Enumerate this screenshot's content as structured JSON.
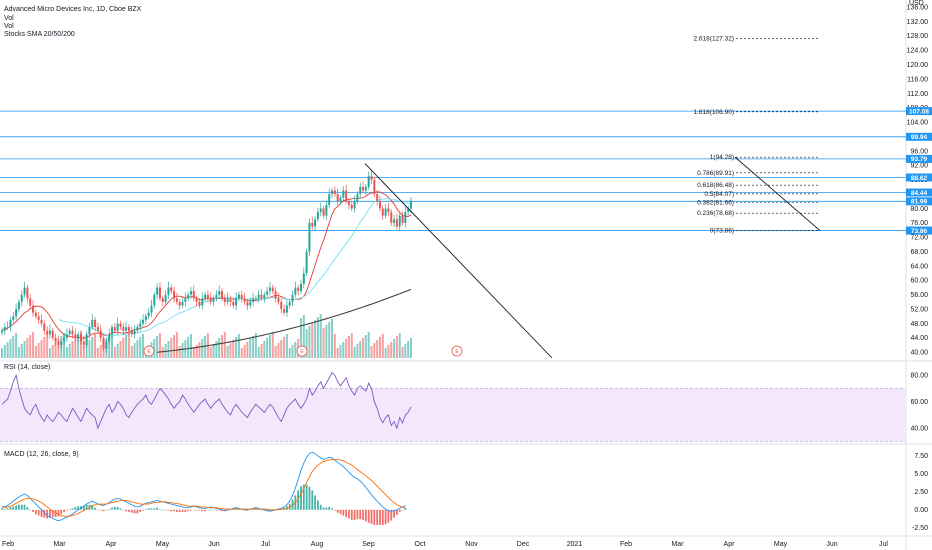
{
  "legend": {
    "symbol": "Advanced Micro Devices Inc, 1D, Cboe BZX",
    "vol1": "Vol",
    "vol2": "Vol",
    "sma": "Stocks SMA 20/50/200",
    "rsi": "RSI (14, close)",
    "macd": "MACD (12, 26, close, 9)"
  },
  "colors": {
    "up": "#26a69a",
    "down": "#ef5350",
    "sma20": "#e53935",
    "sma50": "#7fe3f1",
    "sma200": "#424242",
    "hline": "#2196f3",
    "rsi": "#7e57c2",
    "rsiband": "#f3e8fb",
    "macd": "#2196f3",
    "signal": "#ff6d00",
    "earnings": "#ef5350"
  },
  "chart_data": [
    {
      "name": "price",
      "type": "candlestick",
      "currency_label": "USD",
      "y_ticks": [
        "40.00",
        "44.00",
        "48.00",
        "52.00",
        "56.00",
        "60.00",
        "64.00",
        "68.00",
        "72.00",
        "76.00",
        "80.00",
        "84.00",
        "88.00",
        "92.00",
        "96.00",
        "100.00",
        "104.00",
        "108.00",
        "112.00",
        "116.00",
        "120.00",
        "124.00",
        "128.00",
        "132.00",
        "136.00"
      ],
      "x_ticks": [
        "Feb",
        "Mar",
        "Apr",
        "May",
        "Jun",
        "Jul",
        "Aug",
        "Sep",
        "Oct",
        "Nov",
        "Dec",
        "2021",
        "Feb",
        "Mar",
        "Apr",
        "May",
        "Jun",
        "Jul"
      ],
      "ylim": [
        38.4,
        138
      ],
      "series_closes_approx": [
        46,
        47,
        47,
        49,
        50,
        52,
        54,
        56,
        58,
        55,
        53,
        51,
        50,
        49,
        48,
        46,
        45,
        46,
        44,
        43,
        42,
        43,
        44,
        45,
        46,
        45,
        44,
        45,
        43,
        42,
        45,
        47,
        49,
        47,
        46,
        44,
        41,
        43,
        45,
        47,
        46,
        48,
        47,
        46,
        47,
        46,
        45,
        46,
        47,
        48,
        49,
        50,
        51,
        53,
        56,
        58,
        55,
        54,
        56,
        58,
        57,
        55,
        54,
        53,
        54,
        55,
        56,
        57,
        55,
        54,
        53,
        55,
        56,
        55,
        54,
        55,
        56,
        57,
        55,
        54,
        55,
        54,
        53,
        55,
        56,
        55,
        54,
        53,
        54,
        55,
        55,
        56,
        55,
        56,
        57,
        58,
        57,
        55,
        54,
        52,
        51,
        53,
        54,
        56,
        58,
        57,
        59,
        62,
        68,
        76,
        75,
        77,
        79,
        80,
        78,
        81,
        84,
        85,
        84,
        82,
        83,
        85,
        82,
        81,
        80,
        82,
        84,
        86,
        85,
        86,
        89,
        88,
        84,
        82,
        80,
        78,
        80,
        79,
        76,
        77,
        75,
        78,
        76,
        79,
        80,
        82
      ],
      "horizontal_levels": [
        73.86,
        81.99,
        84.44,
        88.62,
        93.79,
        99.94,
        107.08
      ],
      "fibonacci": [
        {
          "label": "0(73.86)",
          "value": 73.86
        },
        {
          "label": "0.236(78.68)",
          "value": 78.68
        },
        {
          "label": "0.382(81.66)",
          "value": 81.66
        },
        {
          "label": "0.5(84.07)",
          "value": 84.07
        },
        {
          "label": "0.618(86.48)",
          "value": 86.48
        },
        {
          "label": "0.786(89.91)",
          "value": 89.91
        },
        {
          "label": "1(94.28)",
          "value": 94.28
        },
        {
          "label": "1.618(106.90)",
          "value": 106.9
        },
        {
          "label": "2.618(127.32)",
          "value": 127.32
        }
      ],
      "earnings_marker": "E",
      "sma_periods": [
        20,
        50,
        200
      ]
    },
    {
      "name": "rsi",
      "type": "line",
      "y_ticks": [
        "40.00",
        "60.00",
        "80.00"
      ],
      "ylim": [
        28,
        90
      ],
      "band": [
        30,
        70
      ],
      "values_approx": [
        58,
        60,
        62,
        68,
        75,
        80,
        70,
        62,
        55,
        52,
        50,
        55,
        58,
        52,
        48,
        45,
        50,
        47,
        45,
        48,
        52,
        50,
        47,
        45,
        50,
        55,
        52,
        48,
        45,
        50,
        55,
        52,
        50,
        48,
        40,
        45,
        50,
        55,
        58,
        52,
        55,
        60,
        58,
        55,
        50,
        48,
        52,
        55,
        58,
        60,
        62,
        65,
        60,
        58,
        62,
        66,
        70,
        68,
        65,
        62,
        58,
        55,
        58,
        60,
        65,
        62,
        58,
        55,
        52,
        55,
        58,
        60,
        62,
        58,
        55,
        58,
        60,
        62,
        58,
        55,
        52,
        50,
        55,
        58,
        55,
        52,
        50,
        48,
        52,
        55,
        58,
        56,
        54,
        52,
        55,
        58,
        56,
        52,
        48,
        45,
        50,
        55,
        58,
        60,
        62,
        58,
        55,
        58,
        62,
        70,
        65,
        68,
        72,
        75,
        70,
        74,
        78,
        82,
        80,
        75,
        72,
        75,
        78,
        72,
        68,
        65,
        70,
        72,
        70,
        68,
        74,
        70,
        60,
        55,
        48,
        44,
        48,
        50,
        42,
        45,
        40,
        48,
        44,
        50,
        52,
        56
      ]
    },
    {
      "name": "macd",
      "type": "line+histogram",
      "y_ticks": [
        "-2.50",
        "0.00",
        "2.50",
        "5.00",
        "7.50"
      ],
      "ylim": [
        -3.5,
        9
      ],
      "macd_approx": [
        0.5,
        0.4,
        0.6,
        0.9,
        1.2,
        1.5,
        1.8,
        2.0,
        2.2,
        2.0,
        1.6,
        1.2,
        0.8,
        0.4,
        0.0,
        -0.4,
        -0.8,
        -1.0,
        -1.2,
        -1.4,
        -1.5,
        -1.4,
        -1.2,
        -1.0,
        -0.8,
        -0.6,
        -0.3,
        0.0,
        0.2,
        0.5,
        0.8,
        1.0,
        1.2,
        1.0,
        0.8,
        0.7,
        0.6,
        0.8,
        1.0,
        1.3,
        1.5,
        1.6,
        1.5,
        1.3,
        1.1,
        0.9,
        0.7,
        0.5,
        0.4,
        0.5,
        0.7,
        0.9,
        1.0,
        1.1,
        1.2,
        1.3,
        1.2,
        1.1,
        1.0,
        0.9,
        0.8,
        0.7,
        0.6,
        0.5,
        0.4,
        0.3,
        0.3,
        0.4,
        0.5,
        0.4,
        0.3,
        0.2,
        0.2,
        0.3,
        0.4,
        0.3,
        0.2,
        0.1,
        0.0,
        -0.1,
        0.0,
        0.1,
        0.2,
        0.3,
        0.2,
        0.1,
        0.0,
        0.0,
        0.1,
        0.2,
        0.3,
        0.2,
        0.1,
        0.0,
        -0.1,
        -0.2,
        -0.1,
        0.0,
        0.1,
        0.2,
        0.4,
        0.7,
        1.2,
        2.0,
        3.0,
        4.2,
        5.5,
        6.5,
        7.3,
        7.8,
        8.0,
        7.8,
        7.5,
        7.2,
        7.0,
        7.1,
        7.3,
        7.2,
        6.9,
        6.6,
        6.3,
        6.0,
        5.6,
        5.2,
        4.8,
        4.5,
        4.3,
        4.0,
        3.6,
        3.1,
        2.6,
        2.1,
        1.6,
        1.2,
        0.8,
        0.4,
        0.1,
        -0.1,
        -0.2,
        -0.1,
        0.0,
        0.2,
        0.4,
        0.6
      ],
      "signal_approx": [
        0.3,
        0.3,
        0.4,
        0.5,
        0.7,
        0.9,
        1.1,
        1.3,
        1.5,
        1.6,
        1.6,
        1.5,
        1.4,
        1.2,
        1.0,
        0.7,
        0.4,
        0.1,
        -0.2,
        -0.4,
        -0.6,
        -0.8,
        -0.9,
        -0.9,
        -0.9,
        -0.8,
        -0.7,
        -0.5,
        -0.3,
        -0.1,
        0.1,
        0.3,
        0.5,
        0.7,
        0.8,
        0.8,
        0.8,
        0.8,
        0.9,
        1.0,
        1.1,
        1.2,
        1.3,
        1.3,
        1.3,
        1.2,
        1.1,
        1.0,
        0.9,
        0.8,
        0.8,
        0.8,
        0.8,
        0.9,
        1.0,
        1.0,
        1.1,
        1.1,
        1.1,
        1.0,
        1.0,
        0.9,
        0.9,
        0.8,
        0.7,
        0.6,
        0.5,
        0.5,
        0.5,
        0.5,
        0.4,
        0.4,
        0.4,
        0.3,
        0.3,
        0.3,
        0.3,
        0.2,
        0.2,
        0.1,
        0.1,
        0.1,
        0.1,
        0.1,
        0.1,
        0.1,
        0.1,
        0.1,
        0.1,
        0.1,
        0.1,
        0.1,
        0.1,
        0.1,
        0.1,
        0.0,
        0.0,
        0.0,
        0.0,
        0.1,
        0.1,
        0.2,
        0.4,
        0.6,
        1.0,
        1.5,
        2.2,
        3.0,
        3.8,
        4.6,
        5.3,
        5.8,
        6.2,
        6.5,
        6.7,
        6.8,
        6.9,
        7.0,
        7.0,
        7.0,
        6.9,
        6.8,
        6.6,
        6.4,
        6.2,
        5.9,
        5.6,
        5.3,
        5.0,
        4.7,
        4.4,
        4.1,
        3.7,
        3.3,
        2.9,
        2.5,
        2.1,
        1.7,
        1.3,
        1.0,
        0.7,
        0.5,
        0.4,
        0.3
      ]
    }
  ]
}
